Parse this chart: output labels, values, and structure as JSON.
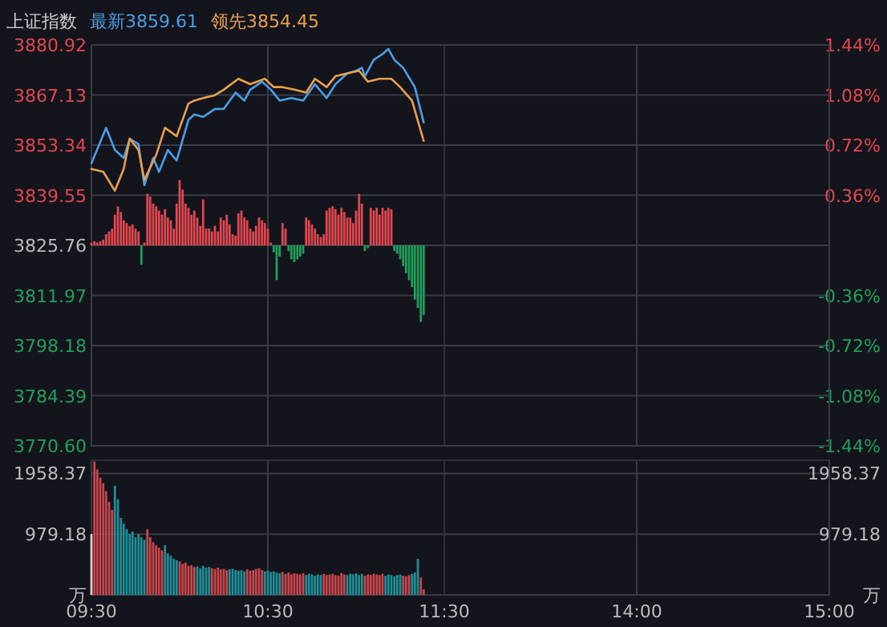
{
  "chart_data": [
    {
      "type": "line",
      "title": "上证指数",
      "legend": "top left",
      "grid": true,
      "tick_labels": "y",
      "xlim": [
        9.5,
        11.5
      ],
      "xticks": [
        {
          "value": 9.5,
          "label": null
        },
        {
          "value": 10.5,
          "label": null
        },
        {
          "value": 11.5,
          "label": null
        }
      ],
      "ylim": [
        3770.6,
        3880.92
      ],
      "yticks": [
        {
          "value": 3770.6,
          "label": "3770.60"
        },
        3784.39,
        3798.18,
        3811.97,
        3825.76,
        3839.55,
        3853.34,
        3867.13,
        3880.92
      ],
      "y2lim": [
        -1.44,
        1.44
      ],
      "series": [
        {
          "type": "bar",
          "axis": "y2",
          "x": [
            9.5,
            9.517,
            9.533,
            9.55,
            9.567,
            9.583,
            9.6,
            9.617,
            9.633,
            9.65,
            9.667,
            9.683,
            9.7,
            9.717,
            9.733,
            9.75,
            9.767,
            9.783,
            9.8,
            9.817,
            9.833,
            9.85,
            9.867,
            9.883,
            9.9,
            9.917,
            9.933,
            9.95,
            9.967,
            9.983,
            10,
            10.017,
            10.033,
            10.05,
            10.067,
            10.083,
            10.1,
            10.117,
            10.133,
            10.15,
            10.167,
            10.183,
            10.2,
            10.217,
            10.233,
            10.25,
            10.267,
            10.283,
            10.3,
            10.317,
            10.333,
            10.35,
            10.367,
            10.383,
            10.4,
            10.417,
            10.433,
            10.45,
            10.467,
            10.483,
            10.5,
            10.517,
            10.533,
            10.55,
            10.567,
            10.583,
            10.6,
            10.617,
            10.633,
            10.65,
            10.667,
            10.683,
            10.7,
            10.717,
            10.733,
            10.75,
            10.767,
            10.783,
            10.8,
            10.817,
            10.833,
            10.85,
            10.867,
            10.883,
            10.9,
            10.917,
            10.933,
            10.95,
            10.967,
            10.983,
            11,
            11.017,
            11.033,
            11.05,
            11.067,
            11.083,
            11.1,
            11.117,
            11.133,
            11.15,
            11.167,
            11.183,
            11.2,
            11.217,
            11.233,
            11.25,
            11.267,
            11.283,
            11.3,
            11.317,
            11.333,
            11.35,
            11.367,
            11.383
          ],
          "values": [
            0.02,
            0.03,
            0.02,
            0.03,
            0.04,
            0.08,
            0.1,
            0.12,
            0.22,
            0.28,
            0.24,
            0.18,
            0.16,
            0.14,
            0.15,
            0.12,
            0.1,
            -0.14,
            0.02,
            0.37,
            0.35,
            0.3,
            0.28,
            0.25,
            0.22,
            0.26,
            0.2,
            0.18,
            0.12,
            0.3,
            0.47,
            0.4,
            0.3,
            0.27,
            0.22,
            0.25,
            0.2,
            0.14,
            0.33,
            0.12,
            0.12,
            0.1,
            0.14,
            0.1,
            0.2,
            0.18,
            0.22,
            0.15,
            0.08,
            0.07,
            0.23,
            0.25,
            0.2,
            0.18,
            0.12,
            0.1,
            0.14,
            0.2,
            0.18,
            0.16,
            0.12,
            0.02,
            -0.05,
            -0.25,
            -0.08,
            0.16,
            0.12,
            -0.04,
            -0.1,
            -0.12,
            -0.1,
            -0.08,
            -0.06,
            0.2,
            0.18,
            0.15,
            0.12,
            0.08,
            0.06,
            0.08,
            0.25,
            0.27,
            0.28,
            0.26,
            0.22,
            0.27,
            0.24,
            0.2,
            0.2,
            0.16,
            0.25,
            0.37,
            0.3,
            -0.04,
            -0.02,
            0.27,
            0.25,
            0.27,
            0.22,
            0.27,
            0.25,
            0.27,
            0.26,
            -0.04,
            -0.06,
            -0.1,
            -0.15,
            -0.2,
            -0.25,
            -0.3,
            -0.39,
            -0.45,
            -0.55,
            -0.5
          ],
          "colors": [
            "#e0474f",
            "#e0474f",
            "#e0474f",
            "#e0474f",
            "#e0474f",
            "#e0474f",
            "#e0474f",
            "#e0474f",
            "#e0474f",
            "#e0474f",
            "#e0474f",
            "#e0474f",
            "#e0474f",
            "#e0474f",
            "#e0474f",
            "#e0474f",
            "#e0474f",
            "#1fa05a",
            "#e0474f",
            "#e0474f",
            "#e0474f",
            "#e0474f",
            "#e0474f",
            "#e0474f",
            "#e0474f",
            "#e0474f",
            "#e0474f",
            "#e0474f",
            "#e0474f",
            "#e0474f",
            "#e0474f",
            "#e0474f",
            "#e0474f",
            "#e0474f",
            "#e0474f",
            "#e0474f",
            "#e0474f",
            "#e0474f",
            "#e0474f",
            "#e0474f",
            "#e0474f",
            "#e0474f",
            "#e0474f",
            "#e0474f",
            "#e0474f",
            "#e0474f",
            "#e0474f",
            "#e0474f",
            "#e0474f",
            "#e0474f",
            "#e0474f",
            "#e0474f",
            "#e0474f",
            "#e0474f",
            "#e0474f",
            "#e0474f",
            "#e0474f",
            "#e0474f",
            "#e0474f",
            "#e0474f",
            "#e0474f",
            "#e0474f",
            "#1fa05a",
            "#1fa05a",
            "#1fa05a",
            "#e0474f",
            "#e0474f",
            "#1fa05a",
            "#1fa05a",
            "#1fa05a",
            "#1fa05a",
            "#1fa05a",
            "#1fa05a",
            "#e0474f",
            "#e0474f",
            "#e0474f",
            "#e0474f",
            "#e0474f",
            "#e0474f",
            "#e0474f",
            "#e0474f",
            "#e0474f",
            "#e0474f",
            "#e0474f",
            "#e0474f",
            "#e0474f",
            "#e0474f",
            "#e0474f",
            "#e0474f",
            "#e0474f",
            "#e0474f",
            "#e0474f",
            "#e0474f",
            "#1fa05a",
            "#1fa05a",
            "#e0474f",
            "#e0474f",
            "#e0474f",
            "#e0474f",
            "#e0474f",
            "#e0474f",
            "#e0474f",
            "#e0474f",
            "#1fa05a",
            "#1fa05a",
            "#1fa05a",
            "#1fa05a",
            "#1fa05a",
            "#1fa05a",
            "#1fa05a",
            "#1fa05a",
            "#1fa05a",
            "#1fa05a",
            "#1fa05a"
          ]
        },
        {
          "name": "最新3859.61",
          "color": "#4a9ee6",
          "x": [
            9.5,
            9.583,
            9.633,
            9.683,
            9.717,
            9.767,
            9.8,
            9.85,
            9.883,
            9.933,
            9.983,
            10.05,
            10.083,
            10.133,
            10.2,
            10.25,
            10.317,
            10.367,
            10.4,
            10.467,
            10.517,
            10.567,
            10.633,
            10.7,
            10.767,
            10.833,
            10.883,
            10.95,
            11,
            11.033,
            11.05,
            11.1,
            11.15,
            11.183,
            11.217,
            11.267,
            11.333,
            11.383
          ],
          "values": [
            3848.3,
            3858.1,
            3852.0,
            3849.8,
            3855.1,
            3853.6,
            3842.3,
            3849.8,
            3846.0,
            3852.0,
            3849.1,
            3860.3,
            3861.8,
            3861.1,
            3863.3,
            3863.3,
            3867.8,
            3865.6,
            3868.6,
            3870.8,
            3868.6,
            3865.6,
            3866.3,
            3865.6,
            3870.1,
            3866.3,
            3870.1,
            3873.1,
            3873.8,
            3874.6,
            3872.3,
            3876.8,
            3878.4,
            3879.8,
            3876.8,
            3874.6,
            3869.3,
            3859.6
          ]
        },
        {
          "name": "领先3854.45",
          "color": "#e9a04e",
          "x": [
            9.5,
            9.567,
            9.633,
            9.683,
            9.717,
            9.767,
            9.8,
            9.867,
            9.917,
            9.983,
            10.05,
            10.083,
            10.133,
            10.2,
            10.25,
            10.333,
            10.4,
            10.483,
            10.533,
            10.583,
            10.65,
            10.717,
            10.767,
            10.833,
            10.883,
            10.95,
            11.017,
            11.067,
            11.133,
            11.2,
            11.25,
            11.317,
            11.383
          ],
          "values": [
            3846.8,
            3846.0,
            3840.8,
            3846.8,
            3855.1,
            3852.0,
            3843.8,
            3850.6,
            3858.1,
            3855.8,
            3864.8,
            3865.6,
            3866.3,
            3867.1,
            3868.6,
            3871.6,
            3870.1,
            3871.6,
            3869.3,
            3869.3,
            3868.6,
            3867.8,
            3871.6,
            3869.3,
            3872.3,
            3873.1,
            3873.8,
            3870.8,
            3871.6,
            3871.6,
            3869.3,
            3865.6,
            3854.5
          ]
        }
      ]
    },
    {
      "type": "line",
      "grid": true,
      "tick_labels": "y",
      "xlim": [
        13,
        15
      ],
      "xticks": [
        {
          "value": 14,
          "label": null
        },
        {
          "value": 15,
          "label": null
        }
      ],
      "y2lim": [
        -1.44,
        1.44
      ],
      "y2ticks": [
        {
          "value": -1.44,
          "label": "-1.44%"
        },
        {
          "value": -1.08,
          "label": "-1.08%"
        },
        {
          "value": -0.72,
          "label": "-0.72%"
        },
        {
          "value": -0.36,
          "label": "-0.36%"
        },
        {
          "value": 0,
          "label": null
        },
        {
          "value": 0.36,
          "label": "0.36%"
        },
        {
          "value": 0.72,
          "label": "0.72%"
        },
        {
          "value": 1.08,
          "label": "1.08%"
        },
        {
          "value": 1.44,
          "label": "1.44%"
        }
      ]
    },
    {
      "type": "bar",
      "grid": true,
      "xlim": [
        9.5,
        11.5
      ],
      "xticks": [
        {
          "value": 9.5,
          "label": "09:30"
        },
        {
          "value": 10.5,
          "label": "10:30"
        },
        {
          "value": 11.5,
          "label": "11:30"
        }
      ],
      "ylim": [
        0,
        2170
      ],
      "yticks": [
        {
          "value": 0,
          "label": "万"
        },
        979.18,
        1958.37
      ],
      "series": [
        {
          "x": [
            9.5,
            9.517,
            9.533,
            9.55,
            9.567,
            9.583,
            9.6,
            9.617,
            9.633,
            9.65,
            9.667,
            9.683,
            9.7,
            9.717,
            9.733,
            9.75,
            9.767,
            9.783,
            9.8,
            9.817,
            9.833,
            9.85,
            9.867,
            9.883,
            9.9,
            9.917,
            9.933,
            9.95,
            9.967,
            9.983,
            10,
            10.017,
            10.033,
            10.05,
            10.067,
            10.083,
            10.1,
            10.117,
            10.133,
            10.15,
            10.167,
            10.183,
            10.2,
            10.217,
            10.233,
            10.25,
            10.267,
            10.283,
            10.3,
            10.317,
            10.333,
            10.35,
            10.367,
            10.383,
            10.4,
            10.417,
            10.433,
            10.45,
            10.467,
            10.483,
            10.5,
            10.517,
            10.533,
            10.55,
            10.567,
            10.583,
            10.6,
            10.617,
            10.633,
            10.65,
            10.667,
            10.683,
            10.7,
            10.717,
            10.733,
            10.75,
            10.767,
            10.783,
            10.8,
            10.817,
            10.833,
            10.85,
            10.867,
            10.883,
            10.9,
            10.917,
            10.933,
            10.95,
            10.967,
            10.983,
            11,
            11.017,
            11.033,
            11.05,
            11.067,
            11.083,
            11.1,
            11.117,
            11.133,
            11.15,
            11.167,
            11.183,
            11.2,
            11.217,
            11.233,
            11.25,
            11.267,
            11.283,
            11.3,
            11.317,
            11.333,
            11.35,
            11.367,
            11.383
          ],
          "values": [
            980,
            2150,
            2020,
            1890,
            1800,
            1670,
            1500,
            1370,
            1760,
            1540,
            1240,
            1150,
            1060,
            980,
            1020,
            930,
            980,
            930,
            890,
            1060,
            930,
            850,
            800,
            760,
            720,
            800,
            670,
            630,
            580,
            560,
            540,
            500,
            520,
            470,
            480,
            450,
            460,
            430,
            470,
            440,
            450,
            430,
            420,
            440,
            410,
            420,
            400,
            410,
            420,
            400,
            390,
            400,
            380,
            410,
            390,
            400,
            420,
            430,
            400,
            380,
            390,
            370,
            380,
            360,
            350,
            370,
            340,
            360,
            330,
            350,
            340,
            330,
            350,
            320,
            340,
            330,
            310,
            330,
            320,
            340,
            320,
            330,
            340,
            320,
            310,
            350,
            330,
            320,
            340,
            330,
            350,
            320,
            340,
            310,
            330,
            320,
            340,
            330,
            320,
            340,
            310,
            330,
            320,
            300,
            320,
            330,
            310,
            300,
            320,
            340,
            360,
            580,
            280,
            90
          ],
          "colors": [
            "#e8c8c8",
            "#c8464c",
            "#c8464c",
            "#c8464c",
            "#c8464c",
            "#c8464c",
            "#c8464c",
            "#c8464c",
            "#1f8e96",
            "#1f8e96",
            "#1f8e96",
            "#1f8e96",
            "#1f8e96",
            "#1f8e96",
            "#1f8e96",
            "#1f8e96",
            "#1f8e96",
            "#1f8e96",
            "#1f8e96",
            "#c8464c",
            "#c8464c",
            "#c8464c",
            "#c8464c",
            "#c8464c",
            "#c8464c",
            "#1f8e96",
            "#1f8e96",
            "#1f8e96",
            "#1f8e96",
            "#1f8e96",
            "#c8464c",
            "#c8464c",
            "#c8464c",
            "#c8464c",
            "#c8464c",
            "#c8464c",
            "#1f8e96",
            "#1f8e96",
            "#1f8e96",
            "#1f8e96",
            "#1f8e96",
            "#c8464c",
            "#c8464c",
            "#c8464c",
            "#c8464c",
            "#c8464c",
            "#c8464c",
            "#1f8e96",
            "#1f8e96",
            "#1f8e96",
            "#1f8e96",
            "#1f8e96",
            "#1f8e96",
            "#c8464c",
            "#c8464c",
            "#c8464c",
            "#c8464c",
            "#c8464c",
            "#c8464c",
            "#1f8e96",
            "#1f8e96",
            "#1f8e96",
            "#1f8e96",
            "#1f8e96",
            "#1f8e96",
            "#c8464c",
            "#c8464c",
            "#c8464c",
            "#c8464c",
            "#c8464c",
            "#c8464c",
            "#c8464c",
            "#c8464c",
            "#1f8e96",
            "#1f8e96",
            "#1f8e96",
            "#1f8e96",
            "#1f8e96",
            "#1f8e96",
            "#c8464c",
            "#c8464c",
            "#c8464c",
            "#c8464c",
            "#c8464c",
            "#c8464c",
            "#c8464c",
            "#c8464c",
            "#1f8e96",
            "#1f8e96",
            "#1f8e96",
            "#1f8e96",
            "#1f8e96",
            "#1f8e96",
            "#c8464c",
            "#c8464c",
            "#c8464c",
            "#c8464c",
            "#c8464c",
            "#c8464c",
            "#c8464c",
            "#1f8e96",
            "#1f8e96",
            "#1f8e96",
            "#1f8e96",
            "#1f8e96",
            "#1f8e96",
            "#c8464c",
            "#c8464c",
            "#c8464c",
            "#1f8e96",
            "#1f8e96",
            "#1f8e96",
            "#c8464c",
            "#c8464c"
          ]
        }
      ]
    },
    {
      "type": "bar",
      "grid": true,
      "xlim": [
        13,
        15
      ],
      "xticks": [
        {
          "value": 14,
          "label": "14:00"
        },
        {
          "value": 15,
          "label": "15:00"
        }
      ],
      "y2lim": [
        0,
        2170
      ],
      "y2ticks": [
        {
          "value": 0,
          "label": "万"
        },
        979.18,
        1958.37
      ]
    }
  ]
}
